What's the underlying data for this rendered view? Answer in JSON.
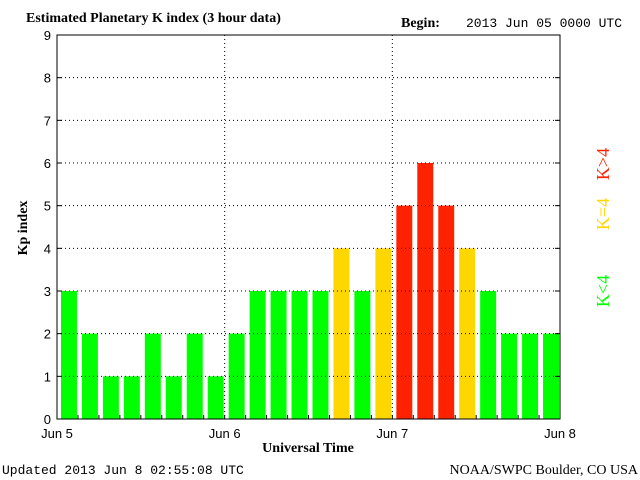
{
  "header": {
    "title": "Estimated Planetary K index (3 hour data)",
    "begin_label": "Begin:",
    "begin_value": "2013 Jun 05 0000 UTC"
  },
  "footer": {
    "updated": "Updated 2013 Jun  8 02:55:08 UTC",
    "source": "NOAA/SWPC Boulder, CO USA"
  },
  "colors": {
    "quiet": "#00ff00",
    "active": "#ffd700",
    "storm": "#ff2200",
    "grid": "#000000"
  },
  "legend": {
    "quiet": "K<4",
    "active": "K=4",
    "storm": "K>4"
  },
  "chart_data": {
    "type": "bar",
    "title": "Estimated Planetary K index (3 hour data)",
    "xlabel": "Universal Time",
    "ylabel": "Kp index",
    "ylim": [
      0,
      9
    ],
    "yticks": [
      0,
      1,
      2,
      3,
      4,
      5,
      6,
      7,
      8,
      9
    ],
    "xticks": [
      "Jun 5",
      "Jun 6",
      "Jun 7",
      "Jun 8"
    ],
    "bars_per_day": 8,
    "grid": true,
    "values": [
      3,
      2,
      1,
      1,
      2,
      1,
      2,
      1,
      2,
      3,
      3,
      3,
      3,
      4,
      3,
      4,
      5,
      6,
      5,
      4,
      3,
      2,
      2,
      2
    ]
  }
}
